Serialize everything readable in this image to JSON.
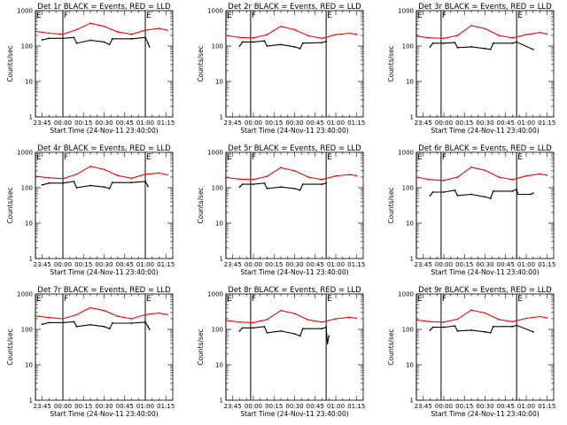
{
  "chart_data": [
    {
      "type": "line",
      "title": "Det 1r BLACK = Events, RED = LLD",
      "xlabel": "Start Time (24-Nov-11 23:40:00)",
      "ylabel": "Counts/sec",
      "x_ticks": [
        "23:45",
        "00:00",
        "00:15",
        "00:30",
        "00:45",
        "01:00",
        "01:15"
      ],
      "y_ticks": [
        "1",
        "10",
        "100",
        "1000"
      ],
      "ylim": [
        1,
        1000
      ],
      "log_y": true,
      "markers": [
        {
          "label": "E",
          "x": "23:40"
        },
        {
          "label": "F",
          "x": "00:00"
        },
        {
          "label": "E",
          "x": "01:00"
        }
      ],
      "series": [
        {
          "name": "LLD",
          "color": "#ff0000",
          "x": [
            "23:40",
            "23:50",
            "00:00",
            "00:10",
            "00:20",
            "00:30",
            "00:40",
            "00:50",
            "01:00",
            "01:10",
            "01:16"
          ],
          "values": [
            260,
            230,
            215,
            290,
            440,
            360,
            250,
            215,
            280,
            315,
            280
          ]
        },
        {
          "name": "Events",
          "color": "#000000",
          "x": [
            "23:45",
            "23:50",
            "00:00",
            "00:08",
            "00:10",
            "00:20",
            "00:30",
            "00:34",
            "00:36",
            "00:50",
            "01:00",
            "01:02",
            "01:03"
          ],
          "values": [
            150,
            165,
            165,
            175,
            120,
            145,
            130,
            110,
            160,
            160,
            175,
            120,
            95
          ]
        }
      ]
    },
    {
      "type": "line",
      "title": "Det 2r BLACK = Events, RED = LLD",
      "xlabel": "Start Time (24-Nov-11 23:40:00)",
      "ylabel": "Counts/sec",
      "x_ticks": [
        "23:45",
        "00:00",
        "00:15",
        "00:30",
        "00:45",
        "01:00",
        "01:15"
      ],
      "y_ticks": [
        "1",
        "10",
        "100",
        "1000"
      ],
      "ylim": [
        1,
        1000
      ],
      "log_y": true,
      "markers": [
        {
          "label": "E",
          "x": "23:40"
        },
        {
          "label": "F",
          "x": "23:58"
        },
        {
          "label": "E",
          "x": "00:53"
        }
      ],
      "series": [
        {
          "name": "LLD",
          "color": "#ff0000",
          "x": [
            "23:40",
            "23:50",
            "00:00",
            "00:10",
            "00:20",
            "00:30",
            "00:40",
            "00:50",
            "01:00",
            "01:10",
            "01:15"
          ],
          "values": [
            200,
            175,
            170,
            210,
            360,
            290,
            195,
            165,
            210,
            230,
            215
          ]
        },
        {
          "name": "Events",
          "color": "#000000",
          "x": [
            "23:50",
            "23:52",
            "00:00",
            "00:08",
            "00:10",
            "00:20",
            "00:30",
            "00:34",
            "00:36",
            "00:50",
            "00:53"
          ],
          "values": [
            100,
            130,
            130,
            140,
            100,
            110,
            95,
            85,
            120,
            125,
            135
          ]
        }
      ]
    },
    {
      "type": "line",
      "title": "Det 3r BLACK = Events, RED = LLD",
      "xlabel": "Start Time (24-Nov-11 23:40:00)",
      "ylabel": "Counts/sec",
      "x_ticks": [
        "23:45",
        "00:00",
        "00:15",
        "00:30",
        "00:45",
        "01:00",
        "01:15"
      ],
      "y_ticks": [
        "1",
        "10",
        "100",
        "1000"
      ],
      "ylim": [
        1,
        1000
      ],
      "log_y": true,
      "markers": [
        {
          "label": "E",
          "x": "23:40"
        },
        {
          "label": "F",
          "x": "23:58"
        },
        {
          "label": "E",
          "x": "00:53"
        }
      ],
      "series": [
        {
          "name": "LLD",
          "color": "#ff0000",
          "x": [
            "23:40",
            "23:50",
            "00:00",
            "00:10",
            "00:20",
            "00:30",
            "00:40",
            "00:50",
            "01:00",
            "01:10",
            "01:15"
          ],
          "values": [
            190,
            170,
            165,
            200,
            380,
            310,
            200,
            170,
            210,
            240,
            220
          ]
        },
        {
          "name": "Events",
          "color": "#000000",
          "x": [
            "23:50",
            "23:52",
            "00:00",
            "00:08",
            "00:10",
            "00:20",
            "00:30",
            "00:34",
            "00:36",
            "00:50",
            "00:53",
            "01:05"
          ],
          "values": [
            95,
            120,
            120,
            125,
            90,
            95,
            85,
            80,
            120,
            120,
            130,
            80
          ]
        }
      ]
    },
    {
      "type": "line",
      "title": "Det 4r BLACK = Events, RED = LLD",
      "xlabel": "Start Time (24-Nov-11 23:40:00)",
      "ylabel": "Counts/sec",
      "x_ticks": [
        "23:45",
        "00:00",
        "00:15",
        "00:30",
        "00:45",
        "01:00",
        "01:15"
      ],
      "y_ticks": [
        "1",
        "10",
        "100",
        "1000"
      ],
      "ylim": [
        1,
        1000
      ],
      "log_y": true,
      "markers": [
        {
          "label": "E",
          "x": "23:40"
        },
        {
          "label": "F",
          "x": "00:00"
        },
        {
          "label": "E",
          "x": "01:00"
        }
      ],
      "series": [
        {
          "name": "LLD",
          "color": "#ff0000",
          "x": [
            "23:40",
            "23:50",
            "00:00",
            "00:10",
            "00:20",
            "00:30",
            "00:40",
            "00:50",
            "01:00",
            "01:10",
            "01:16"
          ],
          "values": [
            210,
            190,
            180,
            240,
            400,
            330,
            220,
            185,
            240,
            260,
            230
          ]
        },
        {
          "name": "Events",
          "color": "#000000",
          "x": [
            "23:45",
            "23:50",
            "00:00",
            "00:08",
            "00:10",
            "00:20",
            "00:30",
            "00:34",
            "00:36",
            "00:50",
            "01:00",
            "01:02"
          ],
          "values": [
            120,
            135,
            135,
            150,
            100,
            115,
            105,
            95,
            140,
            140,
            150,
            110
          ]
        }
      ]
    },
    {
      "type": "line",
      "title": "Det 5r BLACK = Events, RED = LLD",
      "xlabel": "Start Time (24-Nov-11 23:40:00)",
      "ylabel": "Counts/sec",
      "x_ticks": [
        "23:45",
        "00:00",
        "00:15",
        "00:30",
        "00:45",
        "01:00",
        "01:15"
      ],
      "y_ticks": [
        "1",
        "10",
        "100",
        "1000"
      ],
      "ylim": [
        1,
        1000
      ],
      "log_y": true,
      "markers": [
        {
          "label": "E",
          "x": "23:40"
        },
        {
          "label": "F",
          "x": "23:58"
        },
        {
          "label": "E",
          "x": "00:53"
        }
      ],
      "series": [
        {
          "name": "LLD",
          "color": "#ff0000",
          "x": [
            "23:40",
            "23:50",
            "00:00",
            "00:10",
            "00:20",
            "00:30",
            "00:40",
            "00:50",
            "01:00",
            "01:10",
            "01:15"
          ],
          "values": [
            195,
            175,
            170,
            210,
            370,
            300,
            200,
            170,
            215,
            235,
            220
          ]
        },
        {
          "name": "Events",
          "color": "#000000",
          "x": [
            "23:50",
            "23:52",
            "00:00",
            "00:08",
            "00:10",
            "00:20",
            "00:30",
            "00:34",
            "00:36",
            "00:50",
            "00:53"
          ],
          "values": [
            105,
            125,
            125,
            135,
            95,
            105,
            95,
            85,
            125,
            125,
            135
          ]
        }
      ]
    },
    {
      "type": "line",
      "title": "Det 6r BLACK = Events, RED = LLD",
      "xlabel": "Start Time (24-Nov-11 23:40:00)",
      "ylabel": "Counts/sec",
      "x_ticks": [
        "23:45",
        "00:00",
        "00:15",
        "00:30",
        "00:45",
        "01:00",
        "01:15"
      ],
      "y_ticks": [
        "1",
        "10",
        "100",
        "1000"
      ],
      "ylim": [
        1,
        1000
      ],
      "log_y": true,
      "markers": [
        {
          "label": "E",
          "x": "23:40"
        },
        {
          "label": "F",
          "x": "23:58"
        },
        {
          "label": "E",
          "x": "00:53"
        }
      ],
      "series": [
        {
          "name": "LLD",
          "color": "#ff0000",
          "x": [
            "23:40",
            "23:50",
            "00:00",
            "00:10",
            "00:20",
            "00:30",
            "00:40",
            "00:50",
            "01:00",
            "01:10",
            "01:15"
          ],
          "values": [
            200,
            170,
            160,
            200,
            380,
            310,
            200,
            170,
            215,
            245,
            225
          ]
        },
        {
          "name": "Events",
          "color": "#000000",
          "x": [
            "23:50",
            "23:52",
            "00:00",
            "00:08",
            "00:10",
            "00:20",
            "00:30",
            "00:34",
            "00:36",
            "00:50",
            "00:53",
            "00:54",
            "01:03",
            "01:05"
          ],
          "values": [
            60,
            75,
            75,
            85,
            60,
            65,
            55,
            50,
            80,
            80,
            90,
            65,
            65,
            70
          ]
        }
      ]
    },
    {
      "type": "line",
      "title": "Det 7r BLACK = Events, RED = LLD",
      "xlabel": "Start Time (24-Nov-11 23:40:00)",
      "ylabel": "Counts/sec",
      "x_ticks": [
        "23:45",
        "00:00",
        "00:15",
        "00:30",
        "00:45",
        "01:00",
        "01:15"
      ],
      "y_ticks": [
        "1",
        "10",
        "100",
        "1000"
      ],
      "ylim": [
        1,
        1000
      ],
      "log_y": true,
      "markers": [
        {
          "label": "E",
          "x": "23:40"
        },
        {
          "label": "F",
          "x": "00:00"
        },
        {
          "label": "E",
          "x": "01:00"
        }
      ],
      "series": [
        {
          "name": "LLD",
          "color": "#ff0000",
          "x": [
            "23:40",
            "23:50",
            "00:00",
            "00:10",
            "00:20",
            "00:30",
            "00:40",
            "00:50",
            "01:00",
            "01:10",
            "01:16"
          ],
          "values": [
            240,
            215,
            200,
            260,
            410,
            340,
            235,
            200,
            260,
            290,
            260
          ]
        },
        {
          "name": "Events",
          "color": "#000000",
          "x": [
            "23:45",
            "23:50",
            "00:00",
            "00:08",
            "00:10",
            "00:20",
            "00:30",
            "00:34",
            "00:36",
            "00:50",
            "01:00",
            "01:02",
            "01:03"
          ],
          "values": [
            140,
            155,
            155,
            165,
            120,
            135,
            120,
            105,
            150,
            150,
            160,
            120,
            100
          ]
        }
      ]
    },
    {
      "type": "line",
      "title": "Det 8r BLACK = Events, RED = LLD",
      "xlabel": "Start Time (24-Nov-11 23:40:00)",
      "ylabel": "Counts/sec",
      "x_ticks": [
        "23:45",
        "00:00",
        "00:15",
        "00:30",
        "00:45",
        "01:00",
        "01:15"
      ],
      "y_ticks": [
        "1",
        "10",
        "100",
        "1000"
      ],
      "ylim": [
        1,
        1000
      ],
      "log_y": true,
      "markers": [
        {
          "label": "E",
          "x": "23:40"
        },
        {
          "label": "F",
          "x": "23:58"
        },
        {
          "label": "E",
          "x": "00:53"
        }
      ],
      "series": [
        {
          "name": "LLD",
          "color": "#ff0000",
          "x": [
            "23:40",
            "23:50",
            "00:00",
            "00:10",
            "00:20",
            "00:30",
            "00:40",
            "00:50",
            "01:00",
            "01:10",
            "01:15"
          ],
          "values": [
            180,
            160,
            155,
            190,
            340,
            280,
            185,
            160,
            200,
            220,
            205
          ]
        },
        {
          "name": "Events",
          "color": "#000000",
          "x": [
            "23:50",
            "23:52",
            "00:00",
            "00:08",
            "00:10",
            "00:20",
            "00:30",
            "00:34",
            "00:36",
            "00:50",
            "00:53",
            "00:54",
            "00:55"
          ],
          "values": [
            90,
            110,
            110,
            120,
            80,
            90,
            75,
            65,
            105,
            105,
            115,
            40,
            65
          ]
        }
      ]
    },
    {
      "type": "line",
      "title": "Det 9r BLACK = Events, RED = LLD",
      "xlabel": "Start Time (24-Nov-11 23:40:00)",
      "ylabel": "Counts/sec",
      "x_ticks": [
        "23:45",
        "00:00",
        "00:15",
        "00:30",
        "00:45",
        "01:00",
        "01:15"
      ],
      "y_ticks": [
        "1",
        "10",
        "100",
        "1000"
      ],
      "ylim": [
        1,
        1000
      ],
      "log_y": true,
      "markers": [
        {
          "label": "E",
          "x": "23:40"
        },
        {
          "label": "F",
          "x": "23:58"
        },
        {
          "label": "E",
          "x": "00:53"
        }
      ],
      "series": [
        {
          "name": "LLD",
          "color": "#ff0000",
          "x": [
            "23:40",
            "23:50",
            "00:00",
            "00:10",
            "00:20",
            "00:30",
            "00:40",
            "00:50",
            "01:00",
            "01:10",
            "01:15"
          ],
          "values": [
            185,
            165,
            160,
            195,
            350,
            290,
            190,
            165,
            205,
            230,
            210
          ]
        },
        {
          "name": "Events",
          "color": "#000000",
          "x": [
            "23:50",
            "23:52",
            "00:00",
            "00:08",
            "00:10",
            "00:20",
            "00:30",
            "00:34",
            "00:36",
            "00:50",
            "00:53",
            "01:05"
          ],
          "values": [
            95,
            115,
            115,
            125,
            90,
            95,
            85,
            80,
            120,
            120,
            130,
            85
          ]
        }
      ]
    }
  ]
}
